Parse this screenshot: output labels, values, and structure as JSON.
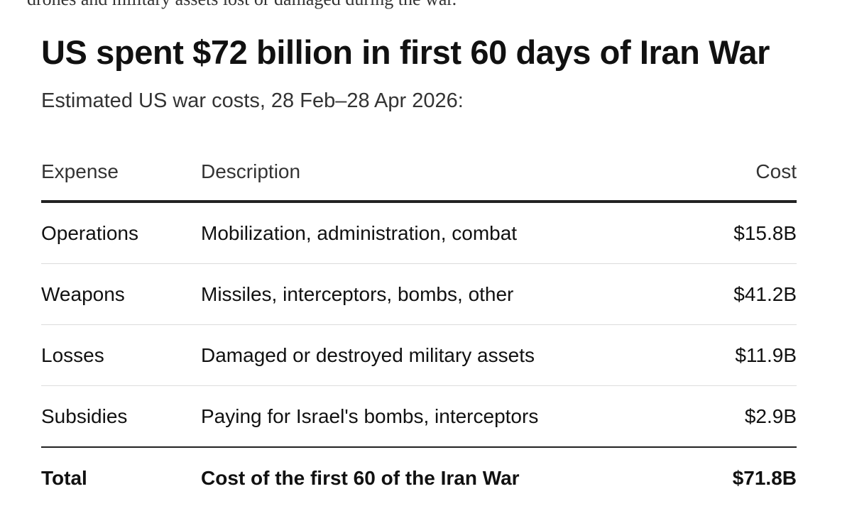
{
  "cut_off_text": "drones and military assets lost or damaged during the war.",
  "title": "US spent $72 billion in first 60 days of Iran War",
  "subtitle": "Estimated US war costs, 28 Feb–28 Apr 2026:",
  "table": {
    "headers": {
      "expense": "Expense",
      "description": "Description",
      "cost": "Cost"
    },
    "rows": [
      {
        "expense": "Operations",
        "description": "Mobilization, administration, combat",
        "cost": "$15.8B"
      },
      {
        "expense": "Weapons",
        "description": "Missiles, interceptors, bombs, other",
        "cost": "$41.2B"
      },
      {
        "expense": "Losses",
        "description": "Damaged or destroyed military assets",
        "cost": "$11.9B"
      },
      {
        "expense": "Subsidies",
        "description": "Paying for Israel's bombs, interceptors",
        "cost": "$2.9B"
      }
    ],
    "total": {
      "expense": "Total",
      "description": "Cost of the first 60 of the Iran War",
      "cost": "$71.8B"
    }
  }
}
